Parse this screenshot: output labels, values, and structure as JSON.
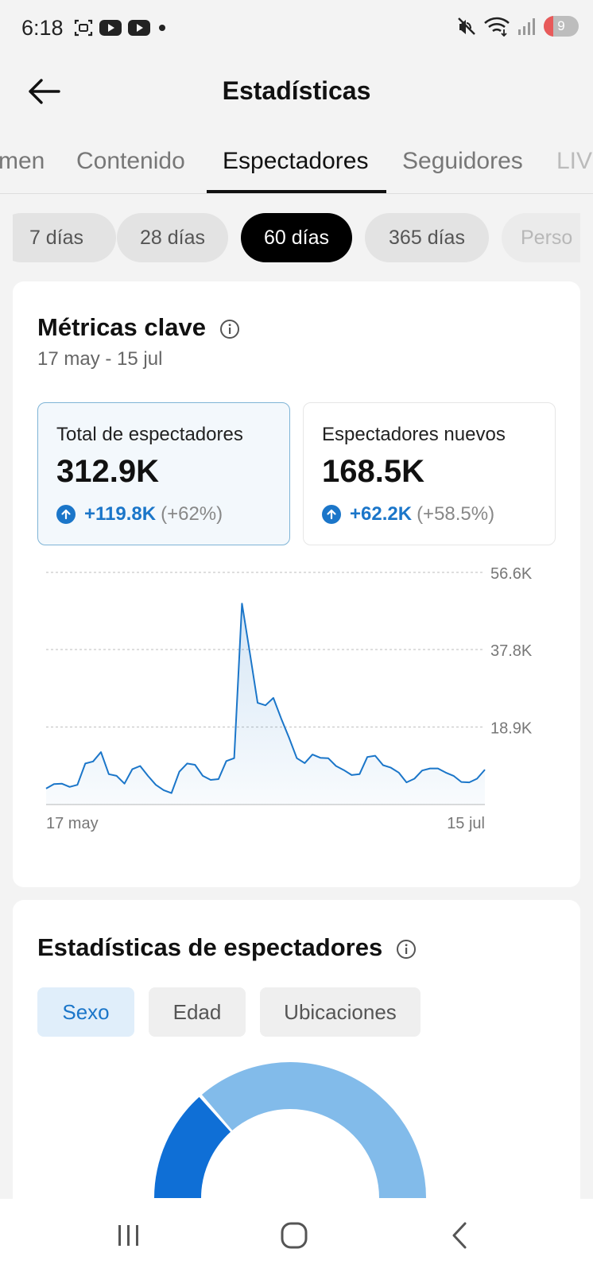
{
  "status_bar": {
    "time": "6:18",
    "battery_level": "9"
  },
  "header": {
    "title": "Estadísticas"
  },
  "tabs": [
    "men",
    "Contenido",
    "Espectadores",
    "Seguidores",
    "LIV"
  ],
  "active_tab": "Espectadores",
  "periods": [
    "7 días",
    "28 días",
    "60 días",
    "365 días",
    "Perso"
  ],
  "active_period": "60 días",
  "key_metrics": {
    "title": "Métricas clave",
    "date_range": "17 may - 15 jul",
    "cards": [
      {
        "label": "Total de espectadores",
        "value": "312.9K",
        "delta": "+119.8K",
        "pct": "(+62%)"
      },
      {
        "label": "Espectadores nuevos",
        "value": "168.5K",
        "delta": "+62.2K",
        "pct": "(+58.5%)"
      }
    ]
  },
  "chart_data": {
    "type": "area",
    "x_start_label": "17 may",
    "x_end_label": "15 jul",
    "y_ticks": [
      "56.6K",
      "37.8K",
      "18.9K"
    ],
    "ylim": [
      0,
      56.6
    ],
    "grid": true,
    "color": "#1b76c9",
    "series": [
      {
        "values": [
          3.9,
          5.0,
          5.1,
          4.3,
          4.8,
          10.0,
          10.5,
          12.8,
          7.4,
          7.0,
          5.1,
          8.6,
          9.4,
          7.0,
          4.8,
          3.5,
          2.8,
          8.0,
          10.0,
          9.7,
          7.0,
          6.0,
          6.2,
          10.6,
          11.3,
          49.0,
          37.0,
          24.8,
          24.2,
          26.0,
          21.0,
          16.3,
          11.3,
          10.1,
          12.2,
          11.4,
          11.3,
          9.4,
          8.4,
          7.2,
          7.4,
          11.6,
          11.9,
          9.6,
          9.0,
          7.8,
          5.4,
          6.3,
          8.3,
          8.8,
          8.8,
          7.8,
          7.0,
          5.5,
          5.4,
          6.3,
          8.5
        ]
      }
    ]
  },
  "audience": {
    "title": "Estadísticas de espectadores",
    "segments": [
      "Sexo",
      "Edad",
      "Ubicaciones"
    ],
    "active_segment": "Sexo",
    "donut_colors": [
      "#0f6fd6",
      "#82bbea"
    ]
  }
}
